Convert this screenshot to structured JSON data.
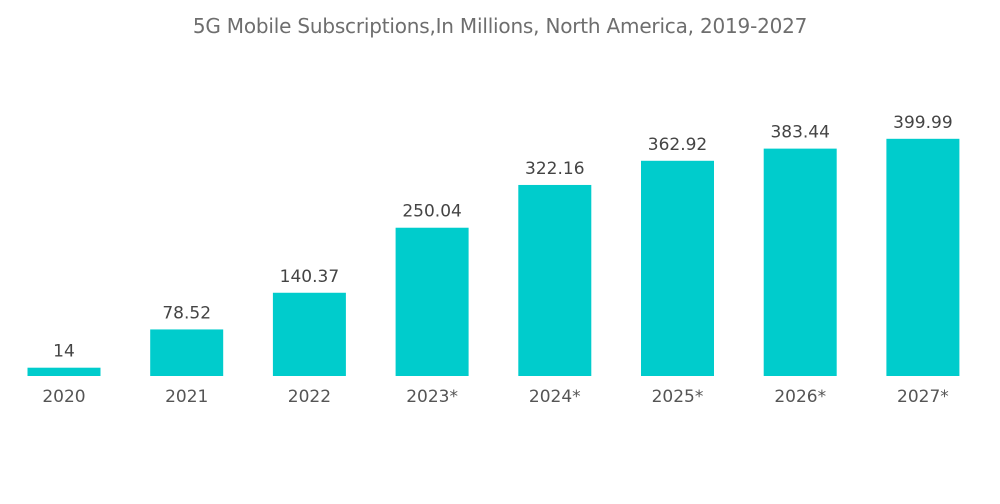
{
  "chart_data": {
    "type": "bar",
    "title": "5G Mobile Subscriptions,In Millions, North America, 2019-2027",
    "xlabel": "",
    "ylabel": "",
    "categories": [
      "2020",
      "2021",
      "2022",
      "2023*",
      "2024*",
      "2025*",
      "2026*",
      "2027*"
    ],
    "values": [
      14,
      78.52,
      140.37,
      250.04,
      322.16,
      362.92,
      383.44,
      399.99
    ],
    "value_labels": [
      "14",
      "78.52",
      "140.37",
      "250.04",
      "322.16",
      "362.92",
      "383.44",
      "399.99"
    ],
    "ylim": [
      0,
      400
    ],
    "grid": false,
    "legend": "none",
    "bar_color": "#00CCCC"
  }
}
